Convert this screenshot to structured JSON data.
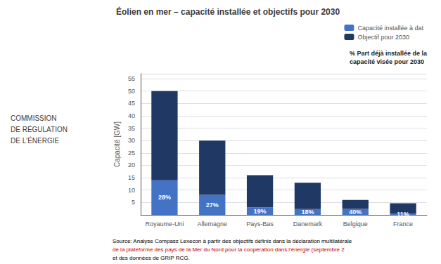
{
  "chart_data": {
    "type": "bar",
    "title": "Éolien en mer – capacité installée et objectifs pour 2030",
    "ylabel": "Capacité [GW]",
    "categories": [
      "Royaume-Uni",
      "Allemagne",
      "Pays-Bas",
      "Danemark",
      "Belgique",
      "France"
    ],
    "series": [
      {
        "name": "Capacité installée à dat",
        "color": "#4472C4",
        "values": [
          14.0,
          8.1,
          3.04,
          2.34,
          2.4,
          0.517
        ],
        "labels": [
          "28%",
          "27%",
          "19%",
          "18%",
          "40%",
          "11%"
        ]
      },
      {
        "name": "Objectif pour 2030",
        "color": "#1F3864",
        "values": [
          36.0,
          21.9,
          12.96,
          10.66,
          3.6,
          4.183
        ]
      }
    ],
    "stacked": true,
    "ylim": [
      0,
      57
    ],
    "yticks": [
      {
        "value": 0,
        "label": ""
      },
      5,
      10,
      15,
      20,
      25,
      30,
      35,
      40,
      45,
      50,
      55
    ],
    "grid": true,
    "legend": "upper right",
    "annotations": [
      {
        "text": "% Part déjà installée de la\ncapacité visée pour 2030"
      },
      {
        "text": "COMMISSION\nDE RÉGULATION\nDE L'ÉNERGIE",
        "color": "#3d3d3d"
      },
      {
        "text": "Source: Analyse Compass Lexecon à partir des objectifs définis dans la déclaration multilatérale",
        "color": "#000000"
      },
      {
        "text": "de la plateforme des pays de la Mer du Nord pour la coopération dans l'énergie (septembre 2",
        "color": "#C00000"
      },
      {
        "text": "et des données de GRIP RCG.",
        "color": "#000000"
      }
    ]
  }
}
